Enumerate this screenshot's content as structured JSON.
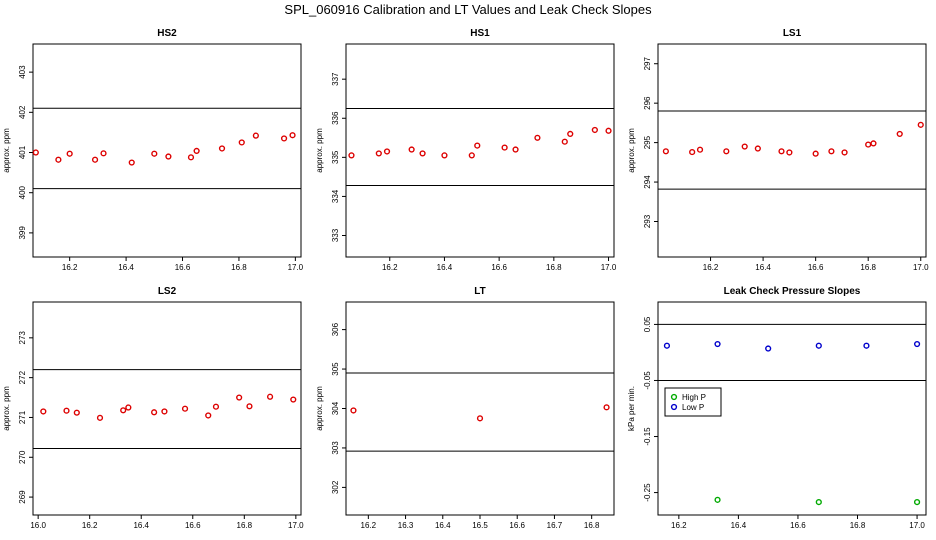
{
  "page_title": "SPL_060916  Calibration and LT Values and Leak Check Slopes",
  "colors": {
    "red": "#dd0000",
    "green": "#00aa00",
    "blue": "#0000cc"
  },
  "chart_data": [
    {
      "id": "hs2",
      "type": "scatter",
      "title": "HS2",
      "ylabel": "approx. ppm",
      "xlim": [
        16.07,
        17.02
      ],
      "ylim": [
        398.4,
        403.7
      ],
      "xticks": [
        16.2,
        16.4,
        16.6,
        16.8,
        17.0
      ],
      "xtick_labels": [
        "16.2",
        "16.4",
        "16.6",
        "16.8",
        "17.0"
      ],
      "yticks": [
        399,
        400,
        401,
        402,
        403
      ],
      "ytick_labels": [
        "399",
        "400",
        "401",
        "402",
        "403"
      ],
      "hlines": [
        402.1,
        400.1
      ],
      "series": [
        {
          "name": "values",
          "color": "#dd0000",
          "x": [
            16.08,
            16.16,
            16.2,
            16.29,
            16.32,
            16.42,
            16.5,
            16.55,
            16.63,
            16.65,
            16.74,
            16.81,
            16.86,
            16.96,
            16.99
          ],
          "y": [
            401.0,
            400.82,
            400.97,
            400.82,
            400.98,
            400.75,
            400.97,
            400.9,
            400.88,
            401.04,
            401.1,
            401.25,
            401.42,
            401.35,
            401.43
          ]
        }
      ]
    },
    {
      "id": "hs1",
      "type": "scatter",
      "title": "HS1",
      "ylabel": "approx. ppm",
      "xlim": [
        16.04,
        17.02
      ],
      "ylim": [
        332.45,
        337.9
      ],
      "xticks": [
        16.2,
        16.4,
        16.6,
        16.8,
        17.0
      ],
      "xtick_labels": [
        "16.2",
        "16.4",
        "16.6",
        "16.8",
        "17.0"
      ],
      "yticks": [
        333,
        334,
        335,
        336,
        337
      ],
      "ytick_labels": [
        "333",
        "334",
        "335",
        "336",
        "337"
      ],
      "hlines": [
        336.25,
        334.28
      ],
      "series": [
        {
          "name": "values",
          "color": "#dd0000",
          "x": [
            16.06,
            16.16,
            16.19,
            16.28,
            16.32,
            16.4,
            16.5,
            16.52,
            16.62,
            16.66,
            16.74,
            16.84,
            16.86,
            16.95,
            17.0
          ],
          "y": [
            335.05,
            335.1,
            335.15,
            335.2,
            335.1,
            335.05,
            335.05,
            335.3,
            335.25,
            335.2,
            335.5,
            335.4,
            335.6,
            335.7,
            335.68
          ]
        }
      ]
    },
    {
      "id": "ls1",
      "type": "scatter",
      "title": "LS1",
      "ylabel": "approx. ppm",
      "xlim": [
        16.0,
        17.02
      ],
      "ylim": [
        292.1,
        297.5
      ],
      "xticks": [
        16.2,
        16.4,
        16.6,
        16.8,
        17.0
      ],
      "xtick_labels": [
        "16.2",
        "16.4",
        "16.6",
        "16.8",
        "17.0"
      ],
      "yticks": [
        293,
        294,
        295,
        296,
        297
      ],
      "ytick_labels": [
        "293",
        "294",
        "295",
        "296",
        "297"
      ],
      "hlines": [
        295.8,
        293.82
      ],
      "series": [
        {
          "name": "values",
          "color": "#dd0000",
          "x": [
            16.03,
            16.13,
            16.16,
            16.26,
            16.33,
            16.38,
            16.47,
            16.5,
            16.6,
            16.66,
            16.71,
            16.8,
            16.82,
            16.92,
            17.0
          ],
          "y": [
            294.78,
            294.76,
            294.82,
            294.78,
            294.9,
            294.85,
            294.78,
            294.75,
            294.72,
            294.78,
            294.75,
            294.95,
            294.98,
            295.22,
            295.45
          ]
        }
      ]
    },
    {
      "id": "ls2",
      "type": "scatter",
      "title": "LS2",
      "ylabel": "approx. ppm",
      "xlim": [
        15.98,
        17.02
      ],
      "ylim": [
        268.55,
        273.9
      ],
      "xticks": [
        16.0,
        16.2,
        16.4,
        16.6,
        16.8,
        17.0
      ],
      "xtick_labels": [
        "16.0",
        "16.2",
        "16.4",
        "16.6",
        "16.8",
        "17.0"
      ],
      "yticks": [
        269,
        270,
        271,
        272,
        273
      ],
      "ytick_labels": [
        "269",
        "270",
        "271",
        "272",
        "273"
      ],
      "hlines": [
        272.2,
        270.22
      ],
      "series": [
        {
          "name": "values",
          "color": "#dd0000",
          "x": [
            16.02,
            16.11,
            16.15,
            16.24,
            16.33,
            16.35,
            16.45,
            16.49,
            16.57,
            16.66,
            16.69,
            16.78,
            16.82,
            16.9,
            16.99
          ],
          "y": [
            271.15,
            271.17,
            271.12,
            270.99,
            271.18,
            271.25,
            271.13,
            271.15,
            271.22,
            271.05,
            271.27,
            271.5,
            271.28,
            271.52,
            271.45
          ]
        }
      ]
    },
    {
      "id": "lt",
      "type": "scatter",
      "title": "LT",
      "ylabel": "approx. ppm",
      "xlim": [
        16.14,
        16.86
      ],
      "ylim": [
        301.3,
        306.7
      ],
      "xticks": [
        16.2,
        16.3,
        16.4,
        16.5,
        16.6,
        16.7,
        16.8
      ],
      "xtick_labels": [
        "16.2",
        "16.3",
        "16.4",
        "16.5",
        "16.6",
        "16.7",
        "16.8"
      ],
      "yticks": [
        302,
        303,
        304,
        305,
        306
      ],
      "ytick_labels": [
        "302",
        "303",
        "304",
        "305",
        "306"
      ],
      "hlines": [
        304.9,
        302.92
      ],
      "series": [
        {
          "name": "values",
          "color": "#dd0000",
          "x": [
            16.16,
            16.5,
            16.84
          ],
          "y": [
            303.95,
            303.75,
            304.03
          ]
        }
      ]
    },
    {
      "id": "leak",
      "type": "scatter",
      "title": "Leak Check Pressure Slopes",
      "ylabel": "kPa per min.",
      "xlim": [
        16.13,
        17.03
      ],
      "ylim": [
        -0.29,
        0.09
      ],
      "xticks": [
        16.2,
        16.4,
        16.6,
        16.8,
        17.0
      ],
      "xtick_labels": [
        "16.2",
        "16.4",
        "16.6",
        "16.8",
        "17.0"
      ],
      "yticks": [
        0.05,
        -0.05,
        -0.15,
        -0.25
      ],
      "ytick_labels": [
        "0.05",
        "-0.05",
        "-0.15",
        "-0.25"
      ],
      "hlines": [
        0.05,
        -0.05
      ],
      "legend": {
        "position": "center-left",
        "entries": [
          "High P",
          "Low P"
        ]
      },
      "series": [
        {
          "name": "High P",
          "color": "#00aa00",
          "x": [
            16.33,
            16.67,
            17.0
          ],
          "y": [
            -0.263,
            -0.267,
            -0.267
          ]
        },
        {
          "name": "Low P",
          "color": "#0000cc",
          "x": [
            16.16,
            16.33,
            16.5,
            16.67,
            16.83,
            17.0
          ],
          "y": [
            0.012,
            0.015,
            0.007,
            0.012,
            0.012,
            0.015
          ]
        }
      ]
    }
  ]
}
